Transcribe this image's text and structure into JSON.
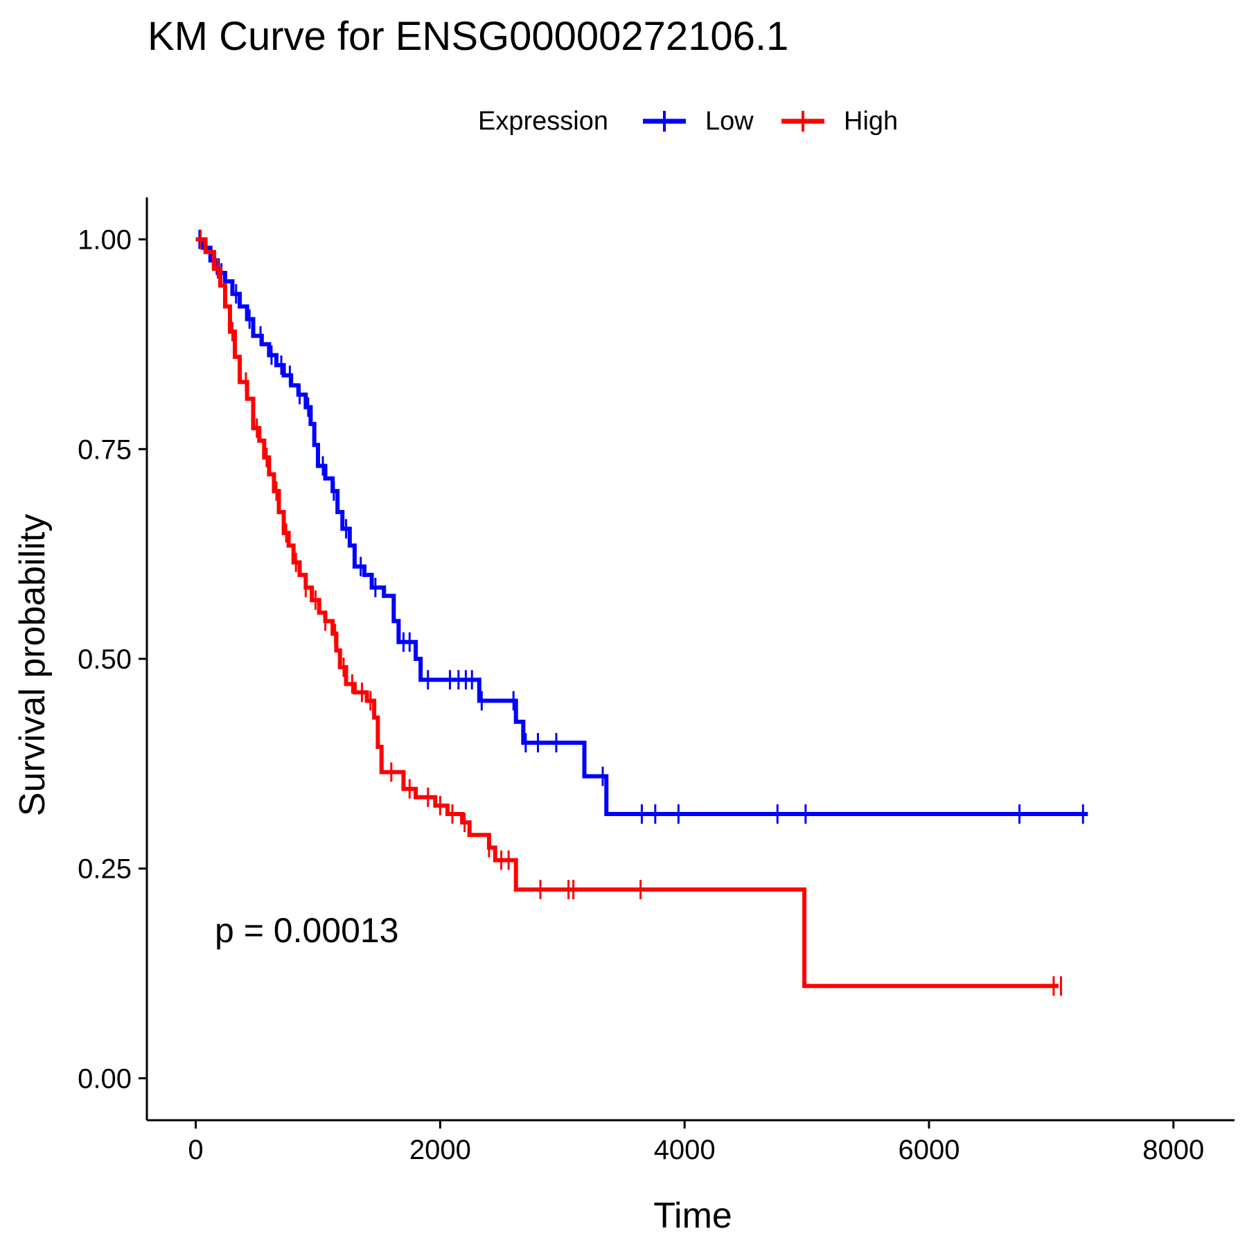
{
  "chart_data": {
    "type": "line",
    "subtype": "kaplan-meier",
    "title": "KM Curve for ENSG00000272106.1",
    "xlabel": "Time",
    "ylabel": "Survival probability",
    "xlim": [
      -400,
      8500
    ],
    "ylim": [
      -0.05,
      1.05
    ],
    "xticks": [
      0,
      2000,
      4000,
      6000,
      8000
    ],
    "xtick_labels": [
      "0",
      "2000",
      "4000",
      "6000",
      "8000"
    ],
    "yticks": [
      0,
      0.25,
      0.5,
      0.75,
      1.0
    ],
    "ytick_labels": [
      "0.00",
      "0.25",
      "0.50",
      "0.75",
      "1.00"
    ],
    "grid": false,
    "legend": {
      "title": "Expression",
      "placement": "top"
    },
    "annotation": "p = 0.00013",
    "series": [
      {
        "name": "Low",
        "color": "#0000ff",
        "points": [
          [
            0,
            1.0
          ],
          [
            60,
            0.99
          ],
          [
            120,
            0.975
          ],
          [
            180,
            0.96
          ],
          [
            240,
            0.95
          ],
          [
            300,
            0.935
          ],
          [
            360,
            0.92
          ],
          [
            420,
            0.905
          ],
          [
            470,
            0.885
          ],
          [
            540,
            0.875
          ],
          [
            600,
            0.862
          ],
          [
            660,
            0.85
          ],
          [
            720,
            0.838
          ],
          [
            780,
            0.826
          ],
          [
            840,
            0.815
          ],
          [
            900,
            0.8
          ],
          [
            940,
            0.78
          ],
          [
            970,
            0.755
          ],
          [
            1000,
            0.73
          ],
          [
            1060,
            0.715
          ],
          [
            1120,
            0.7
          ],
          [
            1160,
            0.675
          ],
          [
            1200,
            0.655
          ],
          [
            1260,
            0.635
          ],
          [
            1300,
            0.61
          ],
          [
            1380,
            0.6
          ],
          [
            1440,
            0.585
          ],
          [
            1540,
            0.575
          ],
          [
            1620,
            0.545
          ],
          [
            1660,
            0.52
          ],
          [
            1800,
            0.5
          ],
          [
            1840,
            0.475
          ],
          [
            2320,
            0.45
          ],
          [
            2620,
            0.425
          ],
          [
            2680,
            0.4
          ],
          [
            3180,
            0.36
          ],
          [
            3360,
            0.315
          ],
          [
            7300,
            0.315
          ]
        ],
        "censor_x": [
          30,
          140,
          210,
          330,
          440,
          530,
          620,
          700,
          770,
          850,
          920,
          1040,
          1130,
          1230,
          1350,
          1470,
          1700,
          1750,
          1900,
          2080,
          2150,
          2210,
          2260,
          2340,
          2600,
          2700,
          2800,
          2950,
          3330,
          3650,
          3760,
          3950,
          4760,
          4990,
          6740,
          7260
        ]
      },
      {
        "name": "High",
        "color": "#ff0000",
        "points": [
          [
            0,
            1.0
          ],
          [
            80,
            0.985
          ],
          [
            150,
            0.965
          ],
          [
            200,
            0.945
          ],
          [
            240,
            0.92
          ],
          [
            280,
            0.89
          ],
          [
            320,
            0.86
          ],
          [
            360,
            0.83
          ],
          [
            420,
            0.81
          ],
          [
            470,
            0.775
          ],
          [
            520,
            0.76
          ],
          [
            560,
            0.74
          ],
          [
            600,
            0.72
          ],
          [
            640,
            0.7
          ],
          [
            680,
            0.675
          ],
          [
            720,
            0.65
          ],
          [
            760,
            0.635
          ],
          [
            800,
            0.615
          ],
          [
            850,
            0.6
          ],
          [
            900,
            0.585
          ],
          [
            950,
            0.57
          ],
          [
            1010,
            0.555
          ],
          [
            1060,
            0.545
          ],
          [
            1120,
            0.53
          ],
          [
            1150,
            0.51
          ],
          [
            1180,
            0.49
          ],
          [
            1230,
            0.47
          ],
          [
            1300,
            0.46
          ],
          [
            1400,
            0.45
          ],
          [
            1460,
            0.43
          ],
          [
            1490,
            0.395
          ],
          [
            1520,
            0.365
          ],
          [
            1700,
            0.345
          ],
          [
            1800,
            0.335
          ],
          [
            1960,
            0.325
          ],
          [
            2060,
            0.315
          ],
          [
            2180,
            0.305
          ],
          [
            2240,
            0.29
          ],
          [
            2400,
            0.275
          ],
          [
            2450,
            0.26
          ],
          [
            2620,
            0.225
          ],
          [
            4960,
            0.225
          ],
          [
            4980,
            0.11
          ],
          [
            7060,
            0.11
          ]
        ],
        "censor_x": [
          40,
          180,
          300,
          410,
          500,
          580,
          660,
          740,
          820,
          900,
          980,
          1060,
          1140,
          1210,
          1280,
          1360,
          1430,
          1600,
          1750,
          1900,
          2000,
          2100,
          2200,
          2400,
          2500,
          2560,
          2820,
          3050,
          3090,
          3640,
          7020,
          7080
        ]
      }
    ]
  }
}
